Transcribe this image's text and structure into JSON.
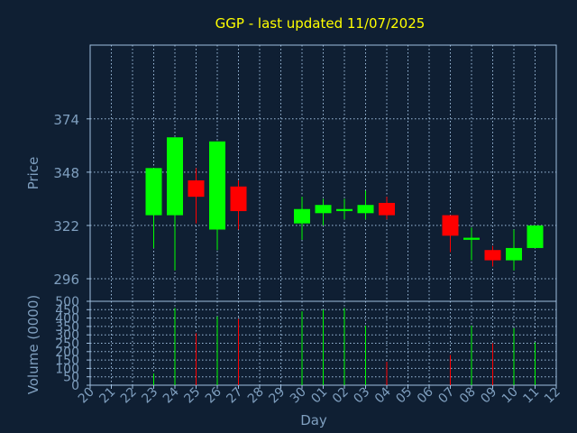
{
  "title": "GGP - last updated 11/07/2025",
  "colors": {
    "background": "#0f1f33",
    "title": "#ffff00",
    "axis_text": "#7f9fbf",
    "frame": "#9fbfdf",
    "grid": "#9fbfdf",
    "up": "#00ff00",
    "down": "#ff0000"
  },
  "chart_data": [
    {
      "type": "candlestick",
      "ylabel": "Price",
      "yticks": [
        296,
        322,
        348,
        374
      ],
      "ylim": [
        285,
        410
      ],
      "grid": true,
      "candles": [
        {
          "date": "23",
          "open": 327,
          "high": 350,
          "low": 311,
          "close": 350
        },
        {
          "date": "24",
          "open": 327,
          "high": 365,
          "low": 300,
          "close": 365
        },
        {
          "date": "25",
          "open": 344,
          "high": 350,
          "low": 323,
          "close": 336
        },
        {
          "date": "26",
          "open": 320,
          "high": 363,
          "low": 310,
          "close": 363
        },
        {
          "date": "27",
          "open": 341,
          "high": 344,
          "low": 320,
          "close": 329
        },
        {
          "date": "30",
          "open": 323,
          "high": 336,
          "low": 315,
          "close": 330
        },
        {
          "date": "01",
          "open": 328,
          "high": 335,
          "low": 322,
          "close": 332
        },
        {
          "date": "02",
          "open": 329,
          "high": 335,
          "low": 325,
          "close": 330
        },
        {
          "date": "03",
          "open": 328,
          "high": 339,
          "low": 325,
          "close": 332
        },
        {
          "date": "04",
          "open": 333,
          "high": 336,
          "low": 325,
          "close": 327
        },
        {
          "date": "07",
          "open": 327,
          "high": 327,
          "low": 309,
          "close": 317
        },
        {
          "date": "08",
          "open": 315,
          "high": 321,
          "low": 305,
          "close": 316
        },
        {
          "date": "09",
          "open": 310,
          "high": 312,
          "low": 302,
          "close": 305
        },
        {
          "date": "10",
          "open": 305,
          "high": 320,
          "low": 300,
          "close": 311
        },
        {
          "date": "11",
          "open": 311,
          "high": 322,
          "low": 311,
          "close": 322
        }
      ]
    },
    {
      "type": "bar",
      "ylabel": "Volume (0000)",
      "xlabel": "Day",
      "yticks": [
        0,
        50,
        100,
        150,
        200,
        250,
        300,
        350,
        400,
        450,
        500
      ],
      "ylim": [
        0,
        500
      ],
      "grid": true,
      "categories": [
        "20",
        "21",
        "22",
        "23",
        "24",
        "25",
        "26",
        "27",
        "28",
        "29",
        "30",
        "01",
        "02",
        "03",
        "04",
        "05",
        "06",
        "07",
        "08",
        "09",
        "10",
        "11",
        "12"
      ],
      "values": [
        0,
        0,
        0,
        70,
        460,
        310,
        410,
        395,
        0,
        0,
        440,
        450,
        460,
        355,
        140,
        0,
        0,
        180,
        355,
        250,
        340,
        255,
        0
      ],
      "direction": [
        "none",
        "none",
        "none",
        "up",
        "up",
        "down",
        "up",
        "down",
        "none",
        "none",
        "up",
        "up",
        "up",
        "up",
        "down",
        "none",
        "none",
        "down",
        "up",
        "down",
        "up",
        "up",
        "none"
      ]
    }
  ]
}
